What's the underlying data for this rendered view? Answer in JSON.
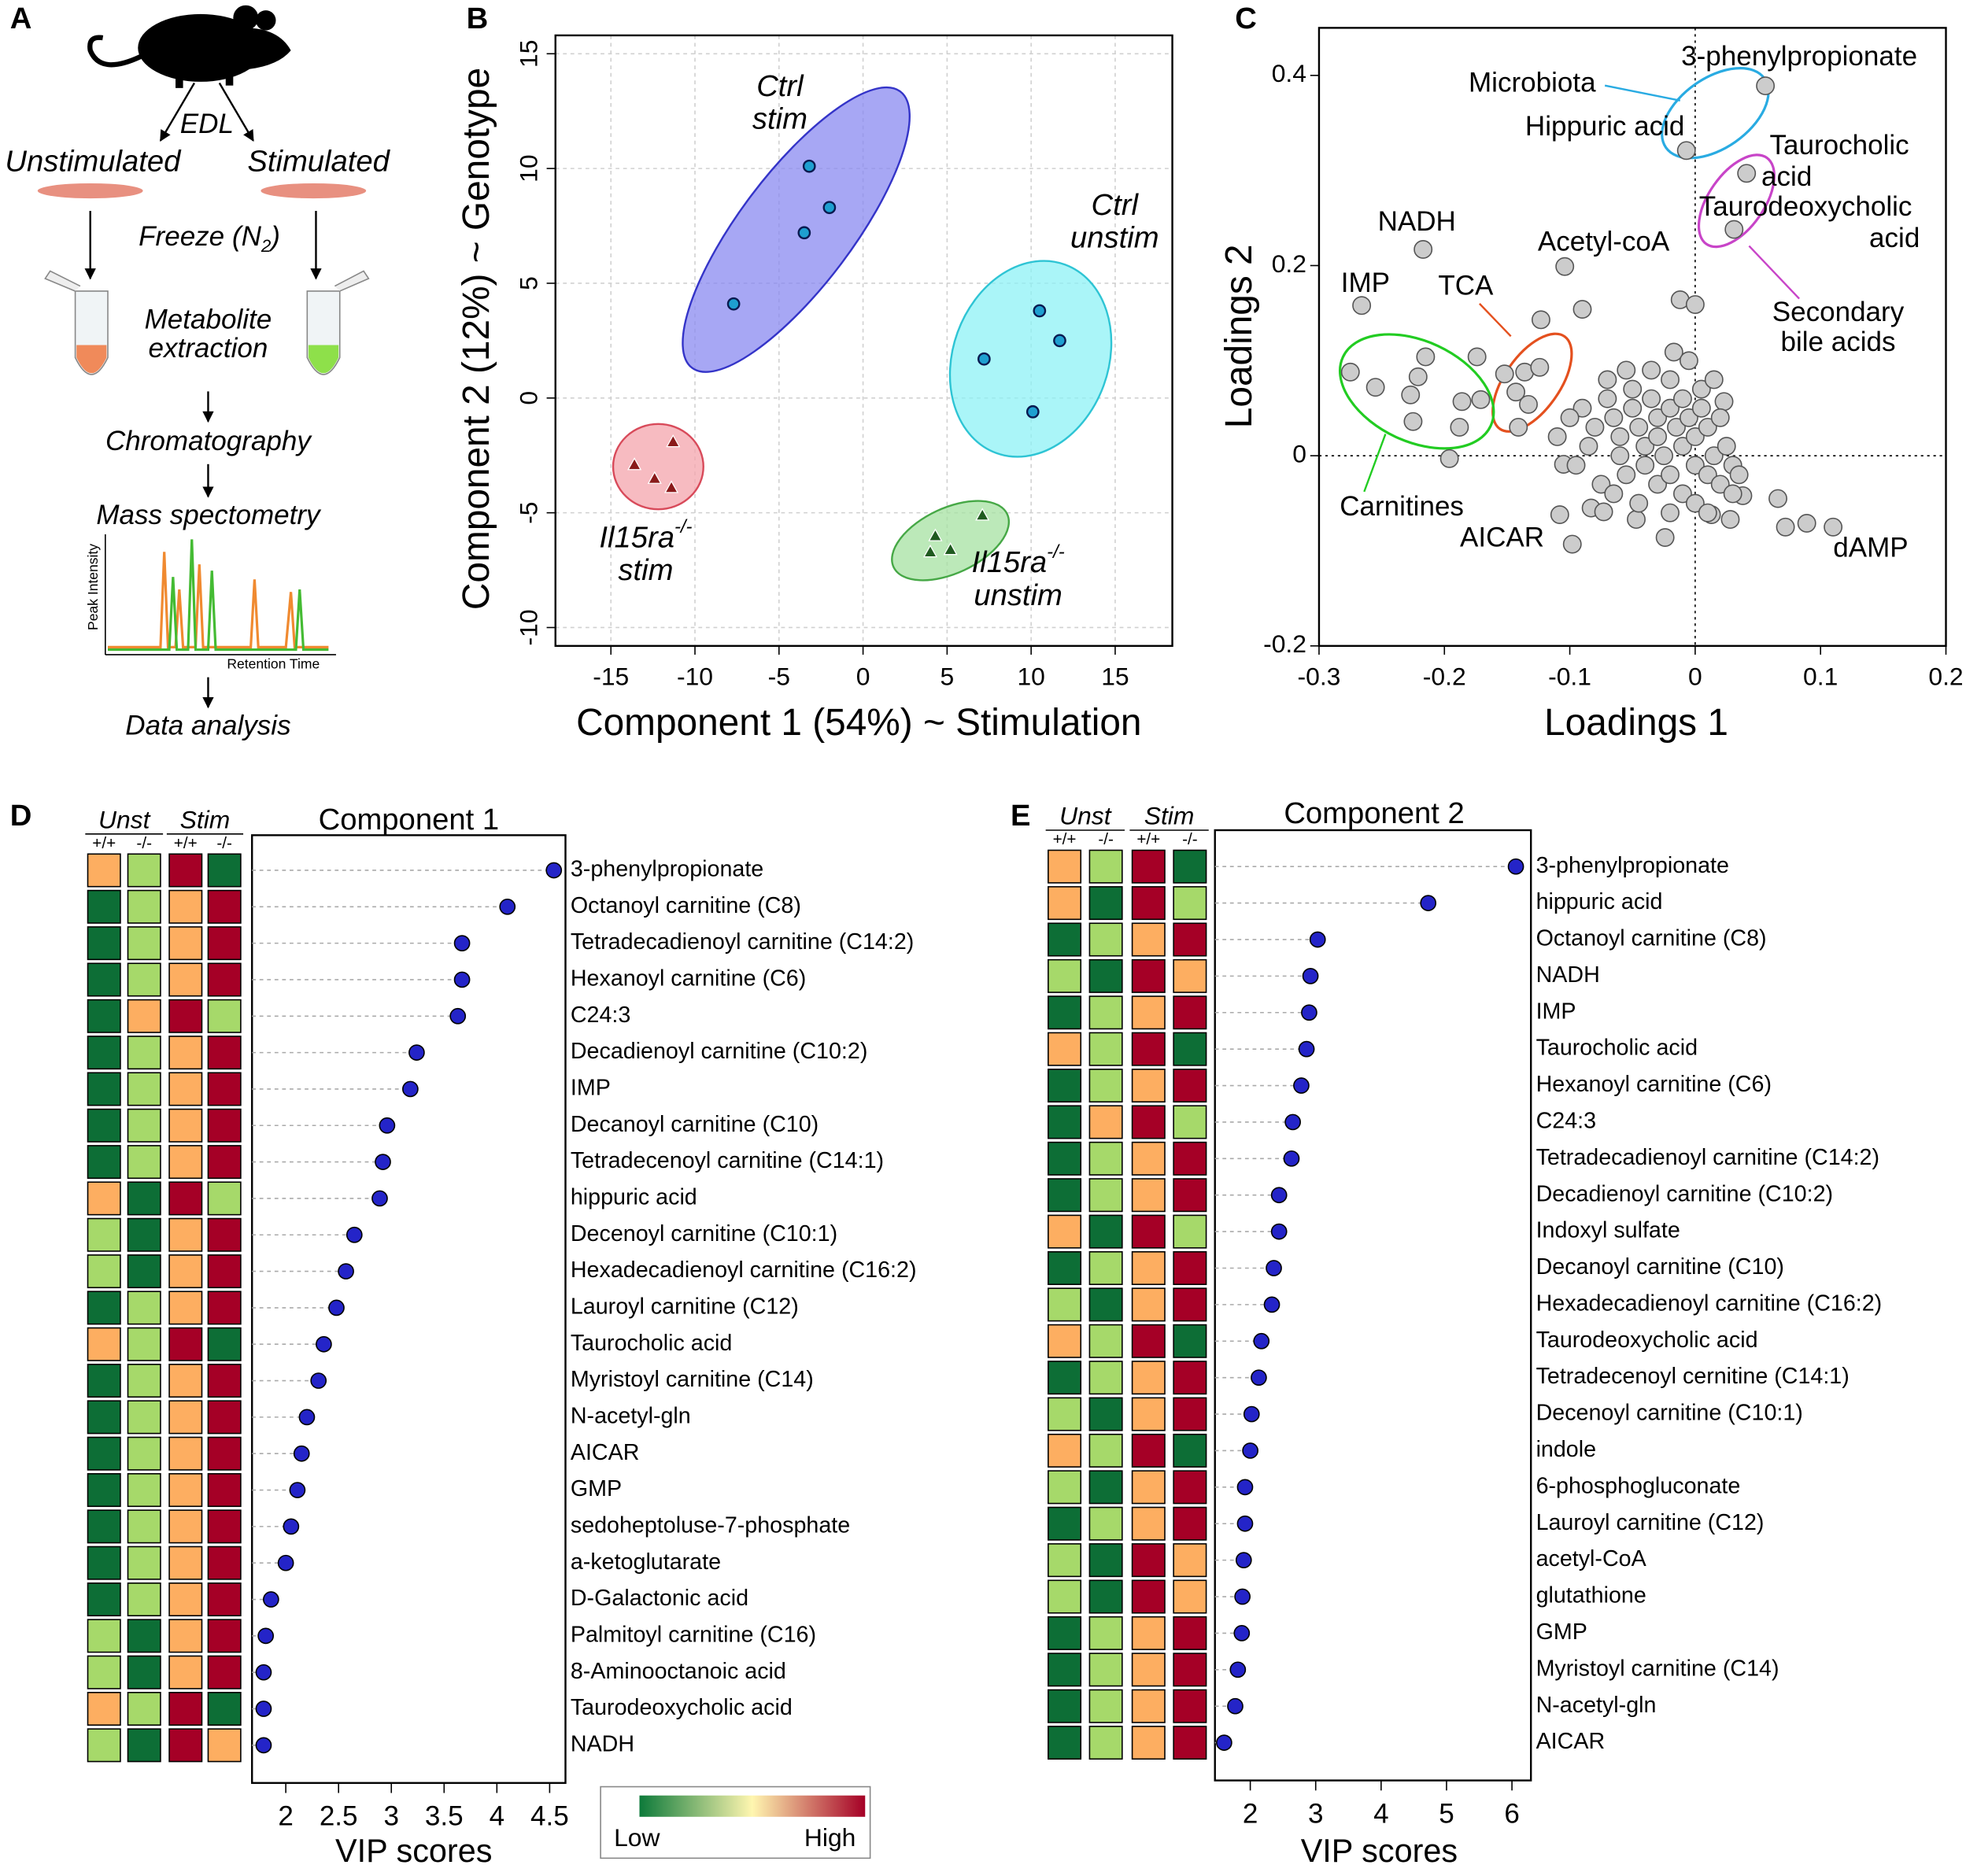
{
  "workflow": {
    "panel": "A",
    "edl": "EDL",
    "left": "Unstimulated",
    "right": "Stimulated",
    "freeze": {
      "text": "Freeze (N",
      "sub": "2",
      "end": ")"
    },
    "extraction": [
      "Metabolite",
      "extraction"
    ],
    "chromatography": "Chromatography",
    "ms": "Mass spectometry",
    "peak": "Peak Intensity",
    "retention": "Retention Time",
    "analysis": "Data analysis"
  },
  "chart_data": [
    {
      "type": "scatter",
      "panel": "B",
      "xlabel": "Component 1 (54%) ~ Stimulation",
      "ylabel": "Component 2 (12%) ~ Genotype",
      "xlim": [
        -18.3,
        18.4
      ],
      "ylim": [
        -10.8,
        15.8
      ],
      "xticks": [
        -15,
        -10,
        -5,
        0,
        5,
        10,
        15
      ],
      "yticks": [
        -10,
        -5,
        0,
        5,
        10,
        15
      ],
      "grid": true,
      "series": [
        {
          "genotype": "Ctrl",
          "condition": "stim",
          "color": "#3434c8",
          "fill": "#8a8af0",
          "marker": "circle",
          "marker_color": "#1e9fd0",
          "x": [
            -3.2,
            -2.0,
            -3.5,
            -7.7
          ],
          "y": [
            10.1,
            8.3,
            7.2,
            4.1
          ]
        },
        {
          "genotype": "Ctrl",
          "condition": "unstim",
          "color": "#2ec4d4",
          "fill": "#8ef2f6",
          "marker": "circle",
          "marker_color": "#1e9fd0",
          "x": [
            10.5,
            11.7,
            7.2,
            10.1
          ],
          "y": [
            3.8,
            2.5,
            1.7,
            -0.6
          ]
        },
        {
          "genotype": "Il15ra",
          "superscript": "-/-",
          "condition": "stim",
          "color": "#d84a5a",
          "fill": "#f4a4ac",
          "marker": "triangle",
          "marker_color": "#8a1a1a",
          "x": [
            -11.3,
            -13.6,
            -12.4,
            -11.4
          ],
          "y": [
            -1.9,
            -2.9,
            -3.5,
            -3.9
          ]
        },
        {
          "genotype": "Il15ra",
          "superscript": "-/-",
          "condition": "unstim",
          "color": "#46a846",
          "fill": "#a6e2a2",
          "marker": "triangle",
          "marker_color": "#1f5a1f",
          "x": [
            7.1,
            4.3,
            5.2,
            4.0
          ],
          "y": [
            -5.1,
            -6.0,
            -6.6,
            -6.7
          ]
        }
      ]
    },
    {
      "type": "scatter",
      "panel": "C",
      "xlabel": "Loadings 1",
      "ylabel": "Loadings 2",
      "xlim": [
        -0.3,
        0.2
      ],
      "ylim": [
        -0.2,
        0.45
      ],
      "xticks": [
        -0.3,
        -0.2,
        -0.1,
        0,
        0.1,
        0.2
      ],
      "yticks": [
        -0.2,
        0,
        0.2,
        0.4
      ],
      "zero_lines": true,
      "color": "#cccccc",
      "x": [
        0.056,
        -0.007,
        0.041,
        0.031,
        -0.217,
        -0.104,
        -0.266,
        -0.098,
        0.11,
        -0.275,
        -0.255,
        -0.215,
        -0.221,
        -0.227,
        -0.225,
        -0.196,
        -0.188,
        -0.186,
        -0.171,
        -0.174,
        -0.152,
        -0.136,
        -0.124,
        -0.143,
        -0.133,
        -0.141,
        -0.123,
        -0.09,
        -0.012,
        0,
        -0.017,
        0.023,
        0.038,
        0.066,
        0.072,
        0.089,
        -0.108,
        -0.105,
        -0.083,
        -0.073,
        -0.047,
        -0.024,
        0.013,
        0.028,
        -0.09,
        -0.08,
        -0.085,
        -0.07,
        -0.065,
        -0.06,
        -0.06,
        -0.055,
        -0.05,
        -0.05,
        -0.045,
        -0.04,
        -0.04,
        -0.035,
        -0.03,
        -0.03,
        -0.03,
        -0.025,
        -0.02,
        -0.02,
        -0.02,
        -0.015,
        -0.01,
        -0.01,
        -0.01,
        -0.005,
        0,
        0,
        0.005,
        0.005,
        0.01,
        0.01,
        0.015,
        0.02,
        0.02,
        0.025,
        0.03,
        0.03,
        0.035,
        -0.075,
        -0.1,
        -0.11,
        -0.095,
        -0.065,
        -0.045,
        -0.02,
        0,
        0.01,
        -0.035,
        -0.055,
        -0.005,
        0.015,
        -0.07
      ],
      "y": [
        0.389,
        0.321,
        0.297,
        0.238,
        0.217,
        0.199,
        0.158,
        -0.093,
        -0.075,
        0.088,
        0.072,
        0.104,
        0.083,
        0.064,
        0.036,
        -0.003,
        0.03,
        0.057,
        0.059,
        0.104,
        0.086,
        0.088,
        0.093,
        0.067,
        0.054,
        0.03,
        0.143,
        0.154,
        0.164,
        0.159,
        0.109,
        0.057,
        -0.042,
        -0.045,
        -0.075,
        -0.071,
        -0.062,
        -0.009,
        -0.055,
        -0.059,
        -0.067,
        -0.086,
        -0.062,
        -0.067,
        0.05,
        0.03,
        0.01,
        0.06,
        0.04,
        0.02,
        0,
        -0.02,
        0.07,
        0.05,
        0.03,
        0.01,
        -0.01,
        0.06,
        0.04,
        0.02,
        -0.03,
        0,
        0.08,
        0.05,
        -0.02,
        0.03,
        0.06,
        0.01,
        -0.04,
        0.04,
        0.02,
        -0.01,
        0.07,
        0.05,
        0.03,
        -0.02,
        0,
        0.04,
        -0.03,
        0.01,
        -0.01,
        -0.04,
        -0.02,
        -0.03,
        0.04,
        0.02,
        -0.01,
        -0.04,
        -0.05,
        -0.06,
        -0.05,
        -0.06,
        0.09,
        0.09,
        0.1,
        0.08,
        0.08
      ],
      "point_labels": [
        [
          "3-phenylpropionate"
        ],
        [
          "Hippuric acid"
        ],
        [
          "Taurocholic",
          "acid"
        ],
        [
          "Taurodeoxycholic",
          "acid"
        ],
        [
          "NADH"
        ],
        [
          "Acetyl-coA"
        ],
        [
          "IMP"
        ],
        [
          "AICAR"
        ],
        [
          "dAMP"
        ],
        null,
        null,
        null,
        null,
        null,
        null,
        null,
        null,
        null,
        null,
        null,
        null,
        null,
        null,
        null,
        null,
        null,
        null,
        null,
        null,
        null,
        null,
        null,
        null,
        null,
        null,
        null,
        null,
        null,
        null,
        null,
        null,
        null,
        null,
        null,
        null,
        null,
        null,
        null,
        null,
        null,
        null,
        null,
        null,
        null,
        null,
        null,
        null,
        null,
        null,
        null,
        null,
        null,
        null,
        null,
        null,
        null,
        null,
        null,
        null,
        null,
        null,
        null,
        null,
        null,
        null,
        null,
        null,
        null,
        null,
        null,
        null,
        null,
        null,
        null,
        null,
        null,
        null,
        null,
        null,
        null,
        null,
        null,
        null,
        null,
        null,
        null,
        null
      ],
      "groups": [
        {
          "name": [
            "Microbiota"
          ],
          "color": "#29abe2"
        },
        {
          "name": [
            "TCA"
          ],
          "color": "#e4501e"
        },
        {
          "name": [
            "Carnitines"
          ],
          "color": "#22cc22"
        },
        {
          "name": [
            "Secondary",
            "bile acids"
          ],
          "color": "#c844c8"
        }
      ]
    },
    {
      "type": "dot",
      "panel": "D",
      "title": "Component 1",
      "xlabel": "VIP scores",
      "xlim": [
        1.68,
        4.65
      ],
      "xticks": [
        2,
        2.5,
        3,
        3.5,
        4,
        4.5
      ],
      "color": "#2424c8",
      "categories": [
        "3-phenylpropionate",
        "Octanoyl carnitine (C8)",
        "Tetradecadienoyl carnitine (C14:2)",
        "Hexanoyl carnitine (C6)",
        "C24:3",
        "Decadienoyl carnitine (C10:2)",
        "IMP",
        "Decanoyl carnitine (C10)",
        "Tetradecenoyl carnitine (C14:1)",
        "hippuric acid",
        "Decenoyl carnitine (C10:1)",
        "Hexadecadienoyl carnitine (C16:2)",
        "Lauroyl carnitine (C12)",
        "Taurocholic acid",
        "Myristoyl carnitine (C14)",
        "N-acetyl-gln",
        "AICAR",
        "GMP",
        "sedoheptoluse-7-phosphate",
        "a-ketoglutarate",
        "D-Galactonic acid",
        "Palmitoyl carnitine (C16)",
        "8-Aminooctanoic acid",
        "Taurodeoxycholic acid",
        "NADH"
      ],
      "values": [
        4.54,
        4.1,
        3.67,
        3.67,
        3.63,
        3.24,
        3.18,
        2.96,
        2.92,
        2.89,
        2.65,
        2.57,
        2.48,
        2.36,
        2.31,
        2.2,
        2.15,
        2.11,
        2.05,
        2.0,
        1.86,
        1.81,
        1.79,
        1.79,
        1.79
      ],
      "heatmap": {
        "groups": [
          "Unst",
          "Stim"
        ],
        "genotypes": [
          "+/+",
          "-/-",
          "+/+",
          "-/-"
        ],
        "colors": [
          "#0d6e36",
          "#a6d96a",
          "#fdae61",
          "#a50026"
        ],
        "levels": [
          [
            2,
            1,
            3,
            0
          ],
          [
            0,
            1,
            2,
            3
          ],
          [
            0,
            1,
            2,
            3
          ],
          [
            0,
            1,
            2,
            3
          ],
          [
            0,
            2,
            3,
            1
          ],
          [
            0,
            1,
            2,
            3
          ],
          [
            0,
            1,
            2,
            3
          ],
          [
            0,
            1,
            2,
            3
          ],
          [
            0,
            1,
            2,
            3
          ],
          [
            2,
            0,
            3,
            1
          ],
          [
            1,
            0,
            2,
            3
          ],
          [
            1,
            0,
            2,
            3
          ],
          [
            0,
            1,
            2,
            3
          ],
          [
            2,
            1,
            3,
            0
          ],
          [
            0,
            1,
            2,
            3
          ],
          [
            0,
            1,
            2,
            3
          ],
          [
            0,
            1,
            2,
            3
          ],
          [
            0,
            1,
            2,
            3
          ],
          [
            0,
            1,
            2,
            3
          ],
          [
            0,
            1,
            2,
            3
          ],
          [
            0,
            1,
            2,
            3
          ],
          [
            1,
            0,
            2,
            3
          ],
          [
            1,
            0,
            2,
            3
          ],
          [
            2,
            1,
            3,
            0
          ],
          [
            1,
            0,
            3,
            2
          ]
        ]
      }
    },
    {
      "type": "dot",
      "panel": "E",
      "title": "Component 2",
      "xlabel": "VIP scores",
      "xlim": [
        1.46,
        6.29
      ],
      "xticks": [
        2,
        3,
        4,
        5,
        6
      ],
      "color": "#2424c8",
      "categories": [
        "3-phenylpropionate",
        "hippuric acid",
        "Octanoyl carnitine (C8)",
        "NADH",
        "IMP",
        "Taurocholic acid",
        "Hexanoyl carnitine (C6)",
        "C24:3",
        "Tetradecadienoyl carnitine (C14:2)",
        "Decadienoyl carnitine (C10:2)",
        "Indoxyl sulfate",
        "Decanoyl carnitine (C10)",
        "Hexadecadienoyl carnitine (C16:2)",
        "Taurodeoxycholic acid",
        "Tetradecenoyl cernitine (C14:1)",
        "Decenoyl carnitine (C10:1)",
        "indole",
        "6-phosphogluconate",
        "Lauroyl carnitine (C12)",
        "acetyl-CoA",
        "glutathione",
        "GMP",
        "Myristoyl carnitine (C14)",
        "N-acetyl-gln",
        "AICAR"
      ],
      "values": [
        6.06,
        4.72,
        3.03,
        2.92,
        2.9,
        2.86,
        2.78,
        2.65,
        2.63,
        2.44,
        2.44,
        2.36,
        2.33,
        2.17,
        2.13,
        2.02,
        2.0,
        1.92,
        1.92,
        1.9,
        1.88,
        1.87,
        1.81,
        1.77,
        1.6
      ],
      "heatmap": {
        "groups": [
          "Unst",
          "Stim"
        ],
        "genotypes": [
          "+/+",
          "-/-",
          "+/+",
          "-/-"
        ],
        "colors": [
          "#0d6e36",
          "#a6d96a",
          "#fdae61",
          "#a50026"
        ],
        "levels": [
          [
            2,
            1,
            3,
            0
          ],
          [
            2,
            0,
            3,
            1
          ],
          [
            0,
            1,
            2,
            3
          ],
          [
            1,
            0,
            3,
            2
          ],
          [
            0,
            1,
            2,
            3
          ],
          [
            2,
            1,
            3,
            0
          ],
          [
            0,
            1,
            2,
            3
          ],
          [
            0,
            2,
            3,
            1
          ],
          [
            0,
            1,
            2,
            3
          ],
          [
            0,
            1,
            2,
            3
          ],
          [
            2,
            0,
            3,
            1
          ],
          [
            0,
            1,
            2,
            3
          ],
          [
            1,
            0,
            2,
            3
          ],
          [
            2,
            1,
            3,
            0
          ],
          [
            0,
            1,
            2,
            3
          ],
          [
            1,
            0,
            2,
            3
          ],
          [
            2,
            1,
            3,
            0
          ],
          [
            1,
            0,
            2,
            3
          ],
          [
            0,
            1,
            2,
            3
          ],
          [
            1,
            0,
            3,
            2
          ],
          [
            1,
            0,
            3,
            2
          ],
          [
            0,
            1,
            2,
            3
          ],
          [
            0,
            1,
            2,
            3
          ],
          [
            0,
            1,
            2,
            3
          ],
          [
            0,
            1,
            2,
            3
          ]
        ]
      }
    }
  ],
  "colorbar": {
    "low": "Low",
    "high": "High",
    "colors": [
      "#0d7a3a",
      "#fff6b0",
      "#a50026"
    ]
  }
}
